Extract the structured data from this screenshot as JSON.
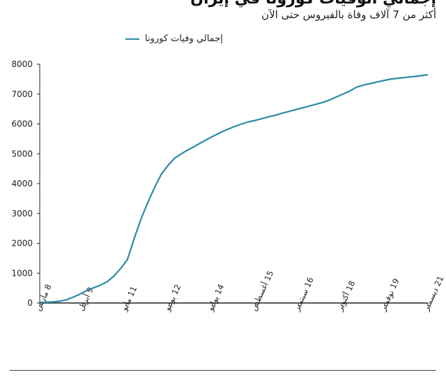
{
  "header": {
    "title": "إجمالي الوفيات كورونا في إيران",
    "subtitle": "أكثر من 7 آلاف وفاة بالفيروس حتى الآن"
  },
  "colors": {
    "series": "#2c8aa6",
    "axis": "#222222"
  },
  "chart_data": {
    "type": "line",
    "title": "إجمالي الوفيات كورونا في إيران",
    "subtitle": "أكثر من 7 آلاف وفاة بالفيروس حتى الآن",
    "ylim": [
      0,
      8000
    ],
    "yticks": [
      0,
      1000,
      2000,
      3000,
      4000,
      5000,
      6000,
      7000,
      8000
    ],
    "xticks": [
      "8 مارس",
      "9 أبريل",
      "11 مايو",
      "12 يونيو",
      "14 يوليو",
      "15 أغسطس",
      "16 سبتمبر",
      "18 أكتوبر",
      "19 نوفمبر",
      "21 ديسمبر"
    ],
    "legend": "top-left",
    "grid": false,
    "series": [
      {
        "name": "إجمالي وفيات كورونا",
        "x": [
          0,
          5,
          10,
          15,
          20,
          25,
          30,
          35,
          40,
          45,
          50,
          55,
          60,
          65,
          70,
          75,
          80,
          85,
          90,
          95,
          100,
          105,
          110,
          115,
          120,
          125,
          130,
          135,
          140,
          145,
          150,
          155,
          160,
          165,
          170,
          175,
          180,
          185,
          190,
          195,
          200,
          205,
          210,
          215,
          220,
          225,
          230,
          235,
          240,
          245,
          250,
          255,
          260,
          270,
          280,
          288
        ],
        "values": [
          20,
          25,
          35,
          60,
          110,
          200,
          300,
          420,
          510,
          600,
          710,
          900,
          1150,
          1450,
          2150,
          2800,
          3350,
          3850,
          4300,
          4600,
          4850,
          5000,
          5130,
          5250,
          5380,
          5500,
          5620,
          5730,
          5830,
          5920,
          6000,
          6070,
          6120,
          6180,
          6240,
          6290,
          6360,
          6420,
          6480,
          6540,
          6600,
          6660,
          6720,
          6800,
          6900,
          7000,
          7100,
          7230,
          7300,
          7350,
          7400,
          7450,
          7500,
          7550,
          7600,
          7650
        ]
      }
    ]
  }
}
